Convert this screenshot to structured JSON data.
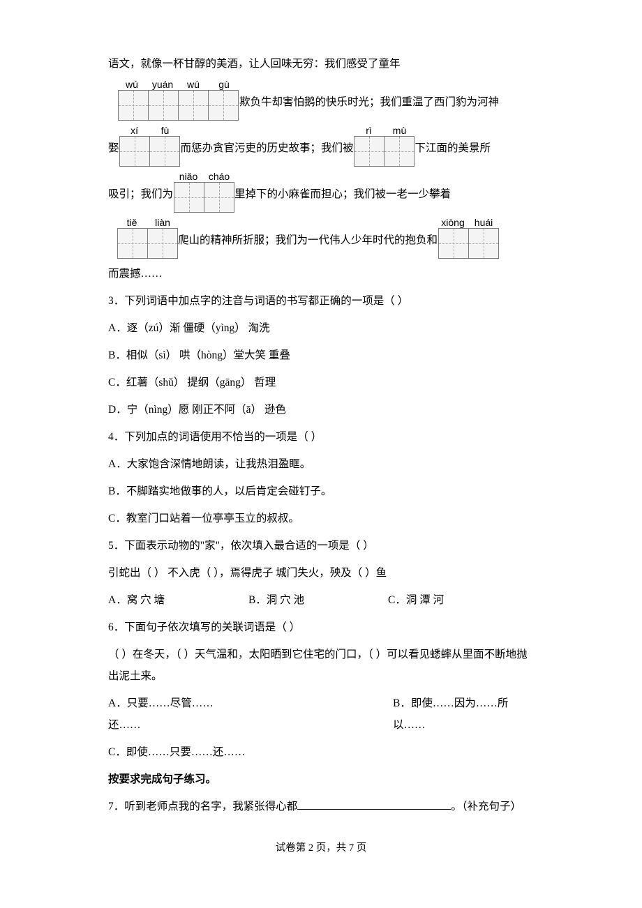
{
  "intro": "语文，就像一杯甘醇的美酒，让人回味无穷：我们感受了童年",
  "pinyin_groups": {
    "g1": {
      "py": [
        "wú",
        "yuán",
        "wú",
        "gù"
      ],
      "cells": 4
    },
    "g2": {
      "py": [
        "xí",
        "fù"
      ],
      "cells": 2
    },
    "g3": {
      "py": [
        "rì",
        "mù"
      ],
      "cells": 2
    },
    "g4": {
      "py": [
        "niǎo",
        "cháo"
      ],
      "cells": 2
    },
    "g5": {
      "py": [
        "tiě",
        "liàn"
      ],
      "cells": 2
    },
    "g6": {
      "py": [
        "xiōng",
        "huái"
      ],
      "cells": 2
    }
  },
  "segments": {
    "s1_after": "欺负牛却害怕鹅的快乐时光；我们重温了西门豹为河神",
    "s2_pre": "娶",
    "s2_mid": "而惩办贪官污吏的历史故事；我们被",
    "s2_after": "下江面的美景所",
    "s3_pre": "吸引；我们为",
    "s3_after": "里掉下的小麻雀而担心；我们被一老一少攀着",
    "s4_mid": "爬山的精神所折服；我们为一代伟人少年时代的抱负和",
    "s5": "而震撼……"
  },
  "q3": {
    "stem": "3．下列词语中加点字的注音与词语的书写都正确的一项是（    ）",
    "A": "A．逐（zú）渐      僵硬（yìng）      淘洗",
    "B": "B．相似（sì）     哄（hòng）堂大笑      重叠",
    "C": "C．红薯（shǔ）       提纲（gāng）       哲理",
    "D": "D．宁（nìng）愿      刚正不阿（ā）     逊色"
  },
  "q4": {
    "stem": "4．下列加点的词语使用不恰当的一项是（     ）",
    "A": "A．大家饱含深情地朗读，让我热泪盈眶。",
    "B": "B．不脚踏实地做事的人，以后肯定会碰钉子。",
    "C": "C．教室门口站着一位亭亭玉立的叔叔。"
  },
  "q5": {
    "stem": "5．下面表示动物的\"家\"，依次填入最合适的一项是（    ）",
    "line": "引蛇出（    ）    不入虎（    ），焉得虎子    城门失火，殃及（    ）鱼",
    "A": "A．窝  穴  塘",
    "B": "B．洞  穴  池",
    "C": "C．洞  潭  河"
  },
  "q6": {
    "stem": "6．下面句子依次填写的关联词语是（    ）",
    "body": "（    ）在冬天，（    ）天气温和，太阳晒到它住宅的门口，（    ）可以看见蟋蟀从里面不断地抛出泥土来。",
    "A": "A．只要……尽管……还……",
    "B": "B．即使……因为……所以……",
    "C": "C．即使……只要……还……"
  },
  "sec_title": "按要求完成句子练习。",
  "q7": {
    "pre": "7．听到老师点我的名字，我紧张得心都",
    "post": "。（补充句子）"
  },
  "footer": "试卷第 2 页，共 7 页"
}
